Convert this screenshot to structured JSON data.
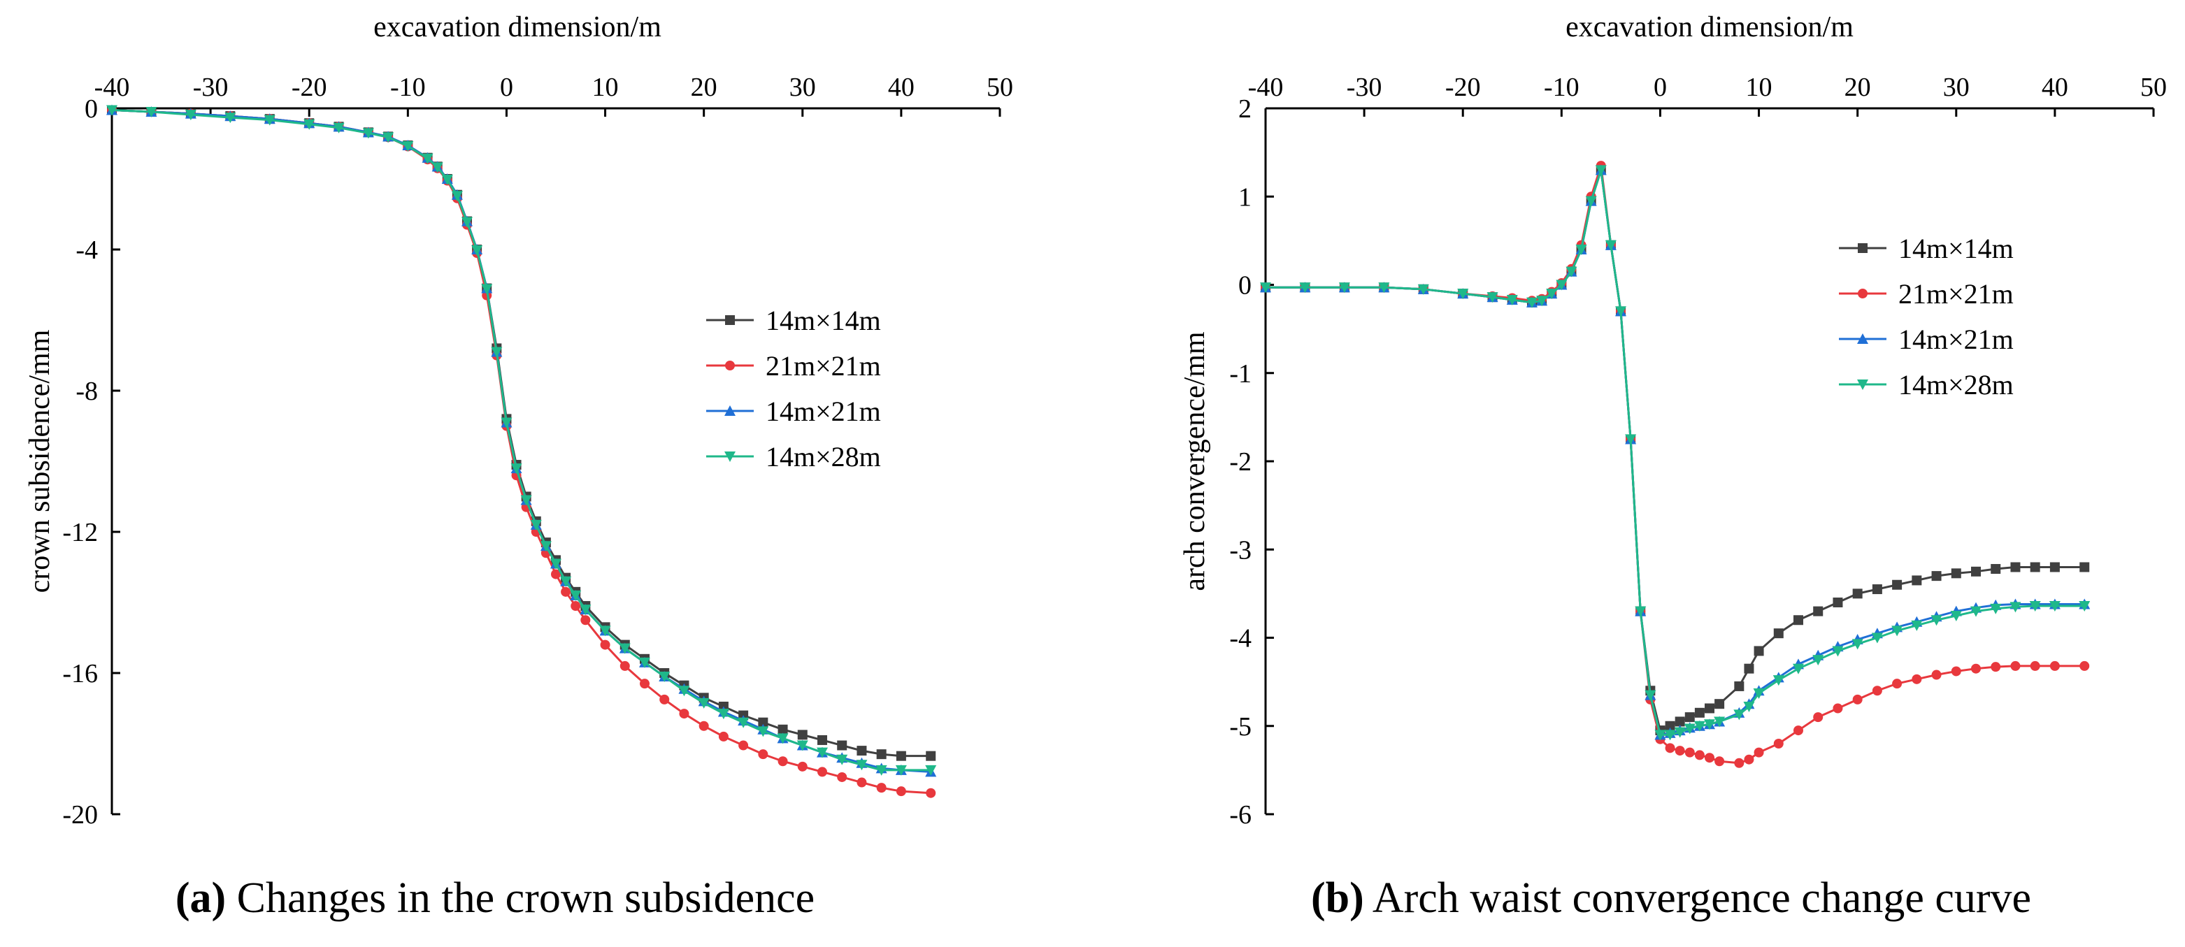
{
  "chart_data": [
    {
      "type": "line",
      "id": "a",
      "caption_letter": "a",
      "caption_text": "Changes in the crown subsidence",
      "xlabel": "excavation dimension/m",
      "ylabel": "crown subsidence/mm",
      "xlim": [
        -40,
        50
      ],
      "ylim": [
        -20,
        0
      ],
      "xticks": [
        -40,
        -30,
        -20,
        -10,
        0,
        10,
        20,
        30,
        40,
        50
      ],
      "yticks": [
        0,
        -4,
        -8,
        -12,
        -16,
        -20
      ],
      "x_axis_position": "top",
      "legend_position": "right-middle",
      "x": [
        -40,
        -36,
        -32,
        -28,
        -24,
        -20,
        -17,
        -14,
        -12,
        -10,
        -8,
        -7,
        -6,
        -5,
        -4,
        -3,
        -2,
        -1,
        0,
        1,
        2,
        3,
        4,
        5,
        6,
        7,
        8,
        10,
        12,
        14,
        16,
        18,
        20,
        22,
        24,
        26,
        28,
        30,
        32,
        34,
        36,
        38,
        40,
        43
      ],
      "series": [
        {
          "name": "14m×14m",
          "color": "#404040",
          "marker": "square",
          "values": [
            -0.05,
            -0.1,
            -0.15,
            -0.22,
            -0.3,
            -0.42,
            -0.52,
            -0.68,
            -0.8,
            -1.05,
            -1.4,
            -1.65,
            -2.0,
            -2.45,
            -3.2,
            -4.0,
            -5.1,
            -6.8,
            -8.8,
            -10.1,
            -11.0,
            -11.7,
            -12.3,
            -12.8,
            -13.3,
            -13.7,
            -14.1,
            -14.7,
            -15.2,
            -15.6,
            -16.0,
            -16.35,
            -16.7,
            -16.95,
            -17.2,
            -17.4,
            -17.6,
            -17.75,
            -17.9,
            -18.05,
            -18.2,
            -18.3,
            -18.35,
            -18.35
          ]
        },
        {
          "name": "21m×21m",
          "color": "#e8383d",
          "marker": "circle",
          "values": [
            -0.05,
            -0.1,
            -0.15,
            -0.22,
            -0.3,
            -0.42,
            -0.52,
            -0.68,
            -0.82,
            -1.08,
            -1.45,
            -1.7,
            -2.05,
            -2.55,
            -3.3,
            -4.1,
            -5.3,
            -7.0,
            -9.0,
            -10.4,
            -11.3,
            -12.0,
            -12.6,
            -13.2,
            -13.7,
            -14.1,
            -14.5,
            -15.2,
            -15.8,
            -16.3,
            -16.75,
            -17.15,
            -17.5,
            -17.8,
            -18.05,
            -18.3,
            -18.5,
            -18.65,
            -18.8,
            -18.95,
            -19.1,
            -19.25,
            -19.35,
            -19.4
          ]
        },
        {
          "name": "14m×21m",
          "color": "#1f6fd6",
          "marker": "triangle-up",
          "values": [
            -0.05,
            -0.1,
            -0.15,
            -0.22,
            -0.3,
            -0.42,
            -0.52,
            -0.68,
            -0.8,
            -1.05,
            -1.4,
            -1.65,
            -2.0,
            -2.45,
            -3.2,
            -4.0,
            -5.1,
            -6.9,
            -8.9,
            -10.2,
            -11.1,
            -11.8,
            -12.4,
            -12.9,
            -13.4,
            -13.8,
            -14.2,
            -14.8,
            -15.3,
            -15.7,
            -16.1,
            -16.45,
            -16.8,
            -17.1,
            -17.35,
            -17.6,
            -17.85,
            -18.05,
            -18.25,
            -18.4,
            -18.55,
            -18.7,
            -18.75,
            -18.8
          ]
        },
        {
          "name": "14m×28m",
          "color": "#1fb88a",
          "marker": "triangle-down",
          "values": [
            -0.05,
            -0.1,
            -0.18,
            -0.26,
            -0.33,
            -0.45,
            -0.55,
            -0.7,
            -0.82,
            -1.07,
            -1.42,
            -1.67,
            -2.02,
            -2.48,
            -3.22,
            -4.02,
            -5.12,
            -6.9,
            -8.9,
            -10.2,
            -11.1,
            -11.8,
            -12.4,
            -12.9,
            -13.4,
            -13.8,
            -14.2,
            -14.8,
            -15.3,
            -15.7,
            -16.1,
            -16.5,
            -16.85,
            -17.15,
            -17.4,
            -17.65,
            -17.85,
            -18.05,
            -18.25,
            -18.45,
            -18.6,
            -18.75,
            -18.75,
            -18.75
          ]
        }
      ],
      "legend_labels": [
        "14m×14m",
        "21m×21m",
        "14m×21m",
        "14m×28m"
      ]
    },
    {
      "type": "line",
      "id": "b",
      "caption_letter": "b",
      "caption_text": "Arch waist convergence change curve",
      "xlabel": "excavation dimension/m",
      "ylabel": "arch convergence/mm",
      "xlim": [
        -40,
        50
      ],
      "ylim": [
        -6,
        2
      ],
      "xticks": [
        -40,
        -30,
        -20,
        -10,
        0,
        10,
        20,
        30,
        40,
        50
      ],
      "yticks": [
        2,
        1,
        0,
        -1,
        -2,
        -3,
        -4,
        -5,
        -6
      ],
      "x_axis_position": "top",
      "legend_position": "right-upper",
      "x": [
        -40,
        -36,
        -32,
        -28,
        -24,
        -20,
        -17,
        -15,
        -13,
        -12,
        -11,
        -10,
        -9,
        -8,
        -7,
        -6,
        -5,
        -4,
        -3,
        -2,
        -1,
        0,
        1,
        2,
        3,
        4,
        5,
        6,
        8,
        9,
        10,
        12,
        14,
        16,
        18,
        20,
        22,
        24,
        26,
        28,
        30,
        32,
        34,
        36,
        38,
        40,
        43
      ],
      "series": [
        {
          "name": "14m×14m",
          "color": "#404040",
          "marker": "square",
          "values": [
            -0.03,
            -0.03,
            -0.03,
            -0.03,
            -0.05,
            -0.1,
            -0.14,
            -0.17,
            -0.2,
            -0.18,
            -0.1,
            0.0,
            0.15,
            0.4,
            0.95,
            1.3,
            0.45,
            -0.3,
            -1.75,
            -3.7,
            -4.6,
            -5.05,
            -5.0,
            -4.95,
            -4.9,
            -4.85,
            -4.8,
            -4.75,
            -4.55,
            -4.35,
            -4.15,
            -3.95,
            -3.8,
            -3.7,
            -3.6,
            -3.5,
            -3.45,
            -3.4,
            -3.35,
            -3.3,
            -3.27,
            -3.25,
            -3.22,
            -3.2,
            -3.2,
            -3.2,
            -3.2
          ]
        },
        {
          "name": "21m×21m",
          "color": "#e8383d",
          "marker": "circle",
          "values": [
            -0.03,
            -0.03,
            -0.03,
            -0.03,
            -0.05,
            -0.1,
            -0.13,
            -0.15,
            -0.18,
            -0.16,
            -0.08,
            0.02,
            0.18,
            0.45,
            1.0,
            1.35,
            0.45,
            -0.3,
            -1.75,
            -3.7,
            -4.7,
            -5.15,
            -5.25,
            -5.28,
            -5.3,
            -5.33,
            -5.36,
            -5.4,
            -5.42,
            -5.38,
            -5.3,
            -5.2,
            -5.05,
            -4.9,
            -4.8,
            -4.7,
            -4.6,
            -4.52,
            -4.47,
            -4.42,
            -4.38,
            -4.35,
            -4.33,
            -4.32,
            -4.32,
            -4.32,
            -4.32
          ]
        },
        {
          "name": "14m×21m",
          "color": "#1f6fd6",
          "marker": "triangle-up",
          "values": [
            -0.03,
            -0.03,
            -0.03,
            -0.03,
            -0.05,
            -0.1,
            -0.14,
            -0.17,
            -0.2,
            -0.18,
            -0.1,
            0.0,
            0.15,
            0.4,
            0.95,
            1.3,
            0.45,
            -0.3,
            -1.75,
            -3.7,
            -4.65,
            -5.1,
            -5.08,
            -5.05,
            -5.02,
            -5.0,
            -4.98,
            -4.95,
            -4.85,
            -4.75,
            -4.6,
            -4.45,
            -4.3,
            -4.2,
            -4.1,
            -4.02,
            -3.95,
            -3.88,
            -3.82,
            -3.76,
            -3.7,
            -3.66,
            -3.63,
            -3.62,
            -3.62,
            -3.62,
            -3.62
          ]
        },
        {
          "name": "14m×28m",
          "color": "#1fb88a",
          "marker": "triangle-down",
          "values": [
            -0.03,
            -0.03,
            -0.03,
            -0.03,
            -0.05,
            -0.1,
            -0.14,
            -0.17,
            -0.2,
            -0.18,
            -0.1,
            0.0,
            0.15,
            0.4,
            0.95,
            1.3,
            0.45,
            -0.3,
            -1.75,
            -3.7,
            -4.65,
            -5.1,
            -5.1,
            -5.07,
            -5.03,
            -5.0,
            -4.98,
            -4.95,
            -4.87,
            -4.78,
            -4.63,
            -4.48,
            -4.35,
            -4.25,
            -4.15,
            -4.07,
            -4.0,
            -3.92,
            -3.86,
            -3.8,
            -3.75,
            -3.7,
            -3.67,
            -3.65,
            -3.64,
            -3.64,
            -3.64
          ]
        }
      ],
      "legend_labels": [
        "14m×14m",
        "21m×21m",
        "14m×21m",
        "14m×28m"
      ]
    }
  ]
}
